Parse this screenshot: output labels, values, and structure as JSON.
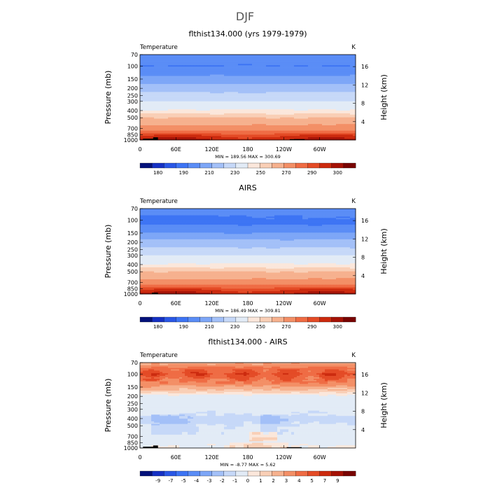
{
  "main_title": "DJF",
  "colors": {
    "temp": [
      "#04127a",
      "#1631c4",
      "#2a57e6",
      "#3d74f4",
      "#5a8df6",
      "#7da6f7",
      "#a3c0f8",
      "#c6d8f8",
      "#e2ebf6",
      "#fbe7db",
      "#f9cfb6",
      "#f6b18e",
      "#f38f66",
      "#ef6c44",
      "#e44b26",
      "#cc2a0e",
      "#a51206",
      "#780402"
    ],
    "diff": [
      "#04127a",
      "#1631c4",
      "#2a57e6",
      "#3d74f4",
      "#5a8df6",
      "#7da6f7",
      "#a3c0f8",
      "#c6d8f8",
      "#e2ebf6",
      "#fbe7db",
      "#f9cfb6",
      "#f6b18e",
      "#f38f66",
      "#ef6c44",
      "#e44b26",
      "#cc2a0e",
      "#a51206",
      "#780402"
    ],
    "topo": "#000000"
  },
  "chart_data": [
    {
      "type": "heatmap",
      "title": "flthist134.000 (yrs 1979-1979)",
      "corner_left": "Temperature",
      "corner_right": "K",
      "ylabel": "Pressure (mb)",
      "ylabel_right": "Height (km)",
      "xticks": [
        "0",
        "60E",
        "120E",
        "180",
        "120W",
        "60W"
      ],
      "xtick_lon": [
        0,
        60,
        120,
        180,
        240,
        300
      ],
      "yticks": [
        "70",
        "100",
        "150",
        "200",
        "250",
        "300",
        "400",
        "500",
        "700",
        "850",
        "1000"
      ],
      "ytick_p": [
        70,
        100,
        150,
        200,
        250,
        300,
        400,
        500,
        700,
        850,
        1000
      ],
      "rticks": [
        "4",
        "8",
        "12",
        "16"
      ],
      "rtick_km": [
        4,
        8,
        12,
        16
      ],
      "min_label": "MIN = 189.56   MAX = 300.69",
      "min": 189.56,
      "max": 300.69,
      "colorbar_labels": [
        "180",
        "190",
        "210",
        "230",
        "250",
        "270",
        "290",
        "300"
      ],
      "profile": [
        [
          70,
          205
        ],
        [
          100,
          200
        ],
        [
          120,
          206
        ],
        [
          150,
          214
        ],
        [
          175,
          220
        ],
        [
          200,
          226
        ],
        [
          250,
          233
        ],
        [
          300,
          240
        ],
        [
          350,
          246
        ],
        [
          400,
          251
        ],
        [
          500,
          260
        ],
        [
          600,
          268
        ],
        [
          700,
          276
        ],
        [
          800,
          284
        ],
        [
          850,
          288
        ],
        [
          925,
          292
        ],
        [
          1000,
          296
        ]
      ],
      "topography": [
        {
          "lon": [
            5,
            25
          ],
          "p": 960
        },
        {
          "lon": [
            22,
            30
          ],
          "p": 920
        },
        {
          "lon": [
            250,
            275
          ],
          "p": 975
        }
      ]
    },
    {
      "type": "heatmap",
      "title": "AIRS",
      "corner_left": "Temperature",
      "corner_right": "K",
      "ylabel": "Pressure (mb)",
      "ylabel_right": "Height (km)",
      "xticks": [
        "0",
        "60E",
        "120E",
        "180",
        "120W",
        "60W"
      ],
      "xtick_lon": [
        0,
        60,
        120,
        180,
        240,
        300
      ],
      "yticks": [
        "70",
        "100",
        "150",
        "200",
        "250",
        "300",
        "400",
        "500",
        "700",
        "850",
        "1000"
      ],
      "ytick_p": [
        70,
        100,
        150,
        200,
        250,
        300,
        400,
        500,
        700,
        850,
        1000
      ],
      "rticks": [
        "4",
        "8",
        "12",
        "16"
      ],
      "rtick_km": [
        4,
        8,
        12,
        16
      ],
      "min_label": "MIN = 186.49   MAX = 309.81",
      "min": 186.49,
      "max": 309.81,
      "colorbar_labels": [
        "180",
        "190",
        "210",
        "230",
        "250",
        "270",
        "290",
        "300"
      ],
      "profile": [
        [
          70,
          206
        ],
        [
          90,
          200
        ],
        [
          110,
          198
        ],
        [
          150,
          210
        ],
        [
          175,
          218
        ],
        [
          200,
          224
        ],
        [
          250,
          232
        ],
        [
          300,
          240
        ],
        [
          350,
          246
        ],
        [
          400,
          251
        ],
        [
          500,
          260
        ],
        [
          600,
          268
        ],
        [
          700,
          276
        ],
        [
          800,
          284
        ],
        [
          850,
          288
        ],
        [
          925,
          292
        ],
        [
          1000,
          296
        ]
      ],
      "topography": [
        {
          "lon": [
            20,
            30
          ],
          "p": 960
        }
      ]
    },
    {
      "type": "heatmap",
      "title": "flthist134.000 - AIRS",
      "corner_left": "Temperature",
      "corner_right": "K",
      "ylabel": "Pressure (mb)",
      "ylabel_right": "Height (km)",
      "xticks": [
        "0",
        "60E",
        "120E",
        "180",
        "120W",
        "60W"
      ],
      "xtick_lon": [
        0,
        60,
        120,
        180,
        240,
        300
      ],
      "yticks": [
        "70",
        "100",
        "150",
        "200",
        "250",
        "300",
        "400",
        "500",
        "700",
        "850",
        "1000"
      ],
      "ytick_p": [
        70,
        100,
        150,
        200,
        250,
        300,
        400,
        500,
        700,
        850,
        1000
      ],
      "rticks": [
        "4",
        "8",
        "12",
        "16"
      ],
      "rtick_km": [
        4,
        8,
        12,
        16
      ],
      "min_label": "MIN = -8.77   MAX =    5.62",
      "min": -8.77,
      "max": 5.62,
      "colorbar_labels": [
        "-9",
        "-7",
        "-5",
        "-4",
        "-3",
        "-2",
        "-1",
        "0",
        "1",
        "2",
        "3",
        "4",
        "5",
        "7",
        "9"
      ],
      "profile": [
        [
          70,
          1.5
        ],
        [
          85,
          3.5
        ],
        [
          100,
          4.5
        ],
        [
          115,
          3.5
        ],
        [
          140,
          2.5
        ],
        [
          170,
          0.5
        ],
        [
          200,
          -1.5
        ],
        [
          300,
          -1.5
        ],
        [
          420,
          -2.5
        ],
        [
          520,
          -1.5
        ],
        [
          700,
          -1.5
        ],
        [
          850,
          -1.5
        ],
        [
          1000,
          -1.0
        ]
      ],
      "topography": [
        {
          "lon": [
            5,
            30
          ],
          "p": 960
        },
        {
          "lon": [
            22,
            30
          ],
          "p": 925
        },
        {
          "lon": [
            245,
            270
          ],
          "p": 975
        }
      ]
    }
  ]
}
